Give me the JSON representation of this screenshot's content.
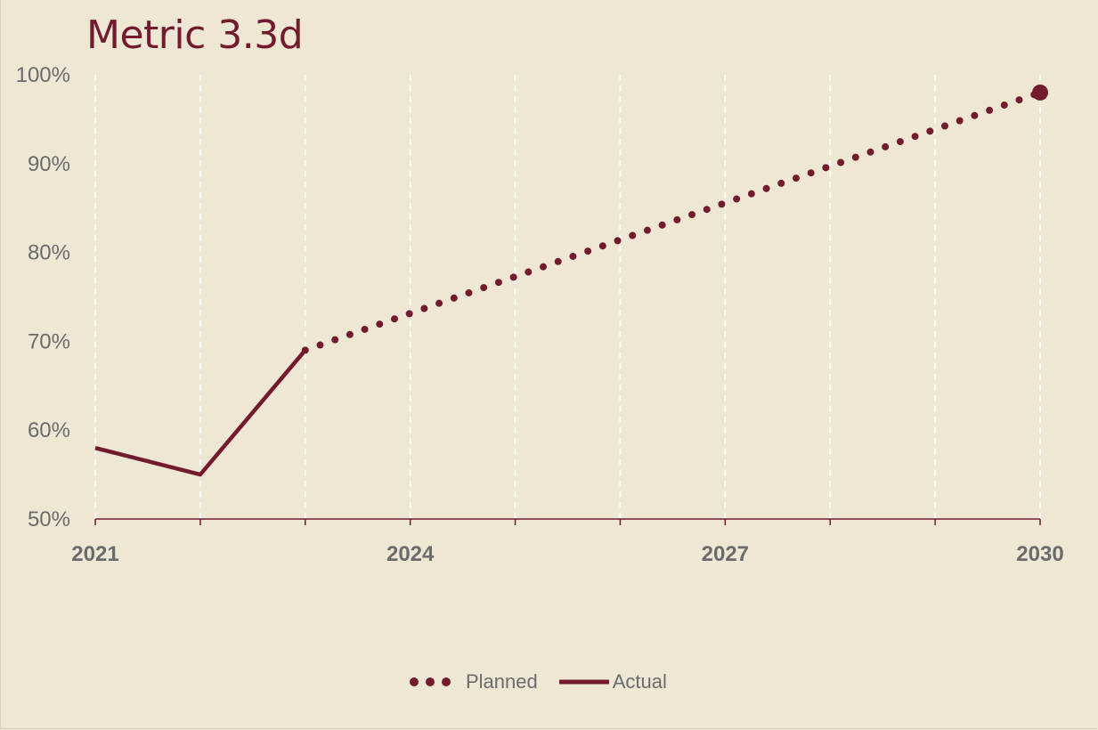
{
  "chart_data": {
    "type": "line",
    "title": "Metric 3.3d",
    "xlabel": "",
    "ylabel": "",
    "xlim": [
      2021,
      2030
    ],
    "ylim": [
      50,
      100
    ],
    "y_ticks": [
      50,
      60,
      70,
      80,
      90,
      100
    ],
    "y_tick_labels": [
      "50%",
      "60%",
      "70%",
      "80%",
      "90%",
      "100%"
    ],
    "x_ticks": [
      2021,
      2024,
      2027,
      2030
    ],
    "x_tick_labels": [
      "2021",
      "2024",
      "2027",
      "2030"
    ],
    "grid": "vertical dashed, yearly",
    "legend_position": "bottom-center",
    "series": [
      {
        "name": "Planned",
        "style": "dotted",
        "color": "#731a2e",
        "x": [
          2023,
          2030
        ],
        "y": [
          69,
          98
        ],
        "end_marker": true
      },
      {
        "name": "Actual",
        "style": "solid",
        "color": "#731a2e",
        "x": [
          2021,
          2022,
          2023
        ],
        "y": [
          58,
          55,
          69
        ]
      }
    ]
  },
  "colors": {
    "accent": "#731a2e",
    "background": "#ede7d4",
    "text": "#6b6b6b",
    "grid": "#ffffff"
  }
}
